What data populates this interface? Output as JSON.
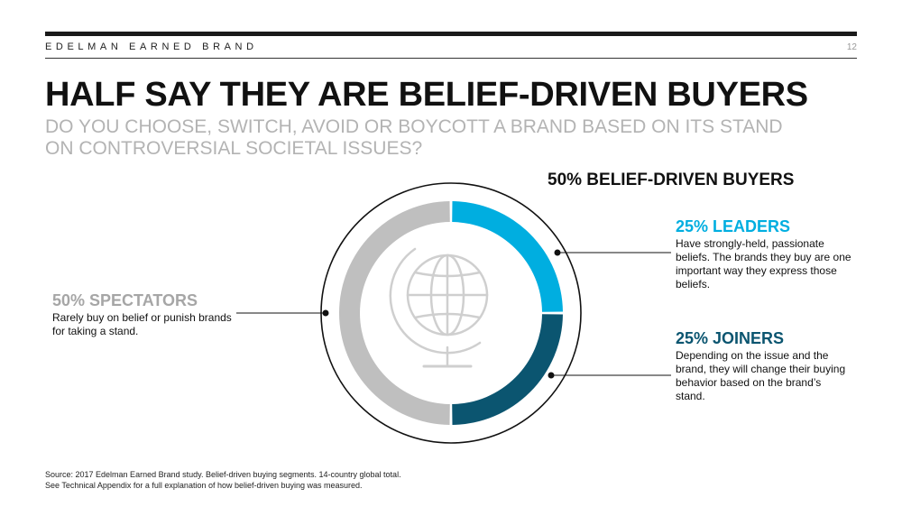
{
  "header": {
    "brand": "EDELMAN EARNED BRAND",
    "page_number": "12"
  },
  "title": "HALF SAY THEY ARE BELIEF-DRIVEN BUYERS",
  "subtitle": "DO YOU CHOOSE, SWITCH, AVOID OR BOYCOTT A BRAND BASED ON ITS STAND ON CONTROVERSIAL SOCIETAL ISSUES?",
  "group_heading": "50% BELIEF-DRIVEN BUYERS",
  "segments": {
    "leaders": {
      "title": "25% LEADERS",
      "description": "Have strongly-held, passionate beliefs. The brands they buy are one important way they express those beliefs."
    },
    "joiners": {
      "title": "25% JOINERS",
      "description": "Depending on the issue and the brand, they will change their buying behavior based on the brand’s stand."
    },
    "spectators": {
      "title": "50% SPECTATORS",
      "description": "Rarely buy on belief or punish brands for taking a stand."
    }
  },
  "footnote": {
    "line1": "Source: 2017 Edelman Earned Brand study. Belief-driven buying segments. 14-country global total.",
    "line2": "See Technical Appendix for a full explanation of how belief-driven buying was measured."
  },
  "center_icon": "globe-icon",
  "chart_data": {
    "type": "pie",
    "variant": "donut",
    "categories": [
      "LEADERS",
      "JOINERS",
      "SPECTATORS"
    ],
    "values": [
      25,
      25,
      50
    ],
    "unit": "%",
    "colors": [
      "#00AEE0",
      "#0B5570",
      "#BFBFBF"
    ]
  }
}
